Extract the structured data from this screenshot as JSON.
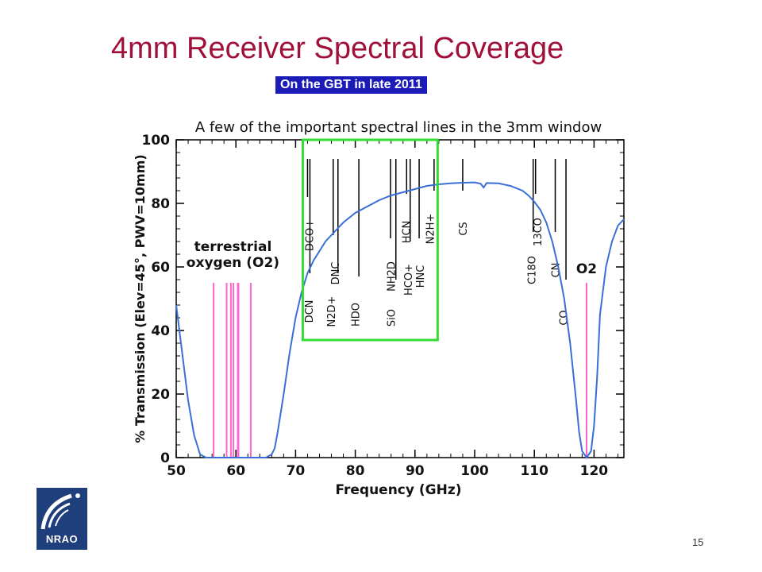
{
  "slide": {
    "title": "4mm Receiver Spectral Coverage",
    "subtitle": "On the GBT in late 2011",
    "page_number": "15",
    "logo_text": "NRAO"
  },
  "colors": {
    "title": "#a0103a",
    "badge_bg": "#1b1bb8",
    "curve": "#3a6fd8",
    "oxygen_lines": "#ff66cc",
    "highlight_box": "#33dd33",
    "logo_bg": "#1f3e7c"
  },
  "chart_data": {
    "type": "line",
    "title": "A few of the important spectral lines in the 3mm window",
    "xlabel": "Frequency (GHz)",
    "ylabel": "% Transmission (Elev=45°, PWV=10mm)",
    "xlim": [
      50,
      125
    ],
    "ylim": [
      0,
      100
    ],
    "x_ticks": [
      50,
      60,
      70,
      80,
      90,
      100,
      110,
      120
    ],
    "y_ticks": [
      0,
      20,
      40,
      60,
      80,
      100
    ],
    "grid": false,
    "series": [
      {
        "x": [
          50,
          51,
          52,
          53,
          54,
          55,
          56,
          57,
          58,
          59,
          60,
          61,
          62,
          63,
          64,
          65,
          66,
          66.5,
          67,
          68,
          69,
          70,
          71,
          72,
          73,
          74,
          75,
          76,
          77,
          78,
          80,
          82,
          84,
          86,
          88,
          90,
          92,
          94,
          96,
          98,
          100,
          101,
          101.5,
          102,
          104,
          106,
          108,
          109,
          110,
          111,
          112,
          113,
          114,
          115,
          116,
          117,
          117.5,
          118,
          118.75,
          119.5,
          120,
          120.5,
          121,
          122,
          123,
          124,
          125
        ],
        "y": [
          48,
          33,
          18,
          7,
          1,
          0,
          0,
          0,
          0,
          0,
          0,
          0,
          0,
          0,
          0,
          0,
          1,
          3,
          8,
          20,
          33,
          44,
          52,
          58,
          62,
          65,
          68,
          70,
          72,
          74,
          77,
          79,
          81,
          82.5,
          83.5,
          84.5,
          85.5,
          86,
          86.3,
          86.5,
          86.6,
          86.2,
          85,
          86.4,
          86.3,
          85.5,
          84,
          82.5,
          80.5,
          78,
          74,
          68,
          60,
          50,
          36,
          18,
          8,
          2,
          0,
          2,
          10,
          25,
          45,
          60,
          68,
          73,
          75
        ]
      }
    ],
    "axis_label_annotations": [
      {
        "label": "terrestrial",
        "x": 59.5,
        "y": 65
      },
      {
        "label": "oxygen (O2)",
        "x": 59.5,
        "y": 60
      }
    ],
    "oxygen_line_freqs": [
      56.26,
      58.45,
      59.16,
      59.59,
      60.31,
      60.43,
      62.49,
      118.75
    ],
    "o2_label": "O2",
    "highlight_range": [
      72,
      93
    ],
    "lines": [
      {
        "label": "DCN",
        "freq": 72.4,
        "top": 94,
        "label_x": 72.2,
        "label_y": 46,
        "rotated": true
      },
      {
        "label": "DCO+",
        "freq": 72.0,
        "top": 94,
        "label_x": 72.3,
        "label_y": 70,
        "rotated": true
      },
      {
        "label": "N2D+",
        "freq": 77.1,
        "top": 94,
        "label_x": 75.9,
        "label_y": 46,
        "rotated": true
      },
      {
        "label": "DNC",
        "freq": 76.3,
        "top": 94,
        "label_x": 76.6,
        "label_y": 58,
        "rotated": true
      },
      {
        "label": "HDO",
        "freq": 80.6,
        "top": 94,
        "label_x": 80.0,
        "label_y": 45,
        "rotated": true
      },
      {
        "label": "SiO",
        "freq": 86.8,
        "top": 94,
        "label_x": 86.0,
        "label_y": 44,
        "rotated": true
      },
      {
        "label": "NH2D",
        "freq": 85.9,
        "top": 94,
        "label_x": 86.0,
        "label_y": 57,
        "rotated": true
      },
      {
        "label": "HCO+",
        "freq": 89.2,
        "top": 94,
        "label_x": 88.8,
        "label_y": 56,
        "rotated": true
      },
      {
        "label": "HNC",
        "freq": 90.7,
        "top": 94,
        "label_x": 90.8,
        "label_y": 57,
        "rotated": true
      },
      {
        "label": "HCN",
        "freq": 88.6,
        "top": 94,
        "label_x": 88.5,
        "label_y": 71,
        "rotated": true
      },
      {
        "label": "N2H+",
        "freq": 93.2,
        "top": 94,
        "label_x": 92.5,
        "label_y": 72,
        "rotated": true
      },
      {
        "label": "CS",
        "freq": 98.0,
        "top": 94,
        "label_x": 98.0,
        "label_y": 72,
        "rotated": true
      },
      {
        "label": "C18O",
        "freq": 109.8,
        "top": 94,
        "label_x": 109.5,
        "label_y": 59,
        "rotated": true
      },
      {
        "label": "13CO",
        "freq": 110.2,
        "top": 94,
        "label_x": 110.5,
        "label_y": 71,
        "rotated": true
      },
      {
        "label": "CN",
        "freq": 113.5,
        "top": 94,
        "label_x": 113.5,
        "label_y": 59,
        "rotated": true
      },
      {
        "label": "CO",
        "freq": 115.3,
        "top": 94,
        "label_x": 114.8,
        "label_y": 44,
        "rotated": true
      }
    ]
  }
}
